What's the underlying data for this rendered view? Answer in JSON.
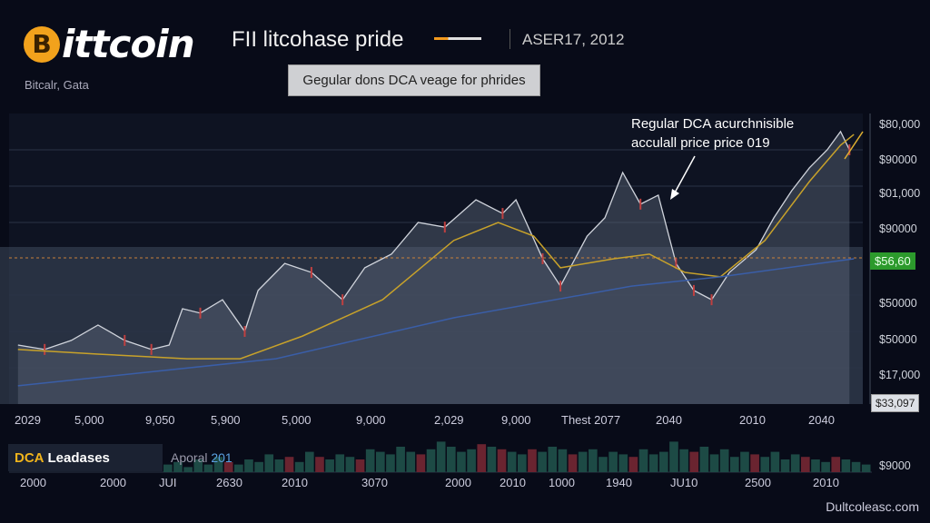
{
  "header": {
    "logo_symbol": "B",
    "logo_text": "ittcoin",
    "title": "FII litcohase pride",
    "date": "ASER17, 2012",
    "subtitle": "Bitcalr, Gata",
    "button_label": "Gegular dons DCA veage for phrides"
  },
  "annotation": {
    "line1": "Regular DCA acurchnisible",
    "line2": "acculall price price 019"
  },
  "y_axis_labels": [
    "$80,000",
    "$90000",
    "$01,000",
    "$90000",
    "$50000",
    "$50000",
    "$17,000"
  ],
  "current_price_badge": "$56,60",
  "price_badge": "$33,097",
  "volume_axis_label": "$9000",
  "x_axis_labels": [
    "2029",
    "5,000",
    "9,050",
    "5,900",
    "5,000",
    "9,000",
    "2,029",
    "9,000",
    "Thest 2077",
    "2040",
    "2010",
    "2040"
  ],
  "volume_x_labels": [
    "2000",
    "2000",
    "JUI",
    "2630",
    "2010",
    "3070",
    "2000",
    "2010",
    "1000",
    "1940",
    "JU10",
    "2500",
    "2010"
  ],
  "volume_panel": {
    "label_a": "DCA",
    "label_b": "Leadases",
    "aporal": "Aporal",
    "aporal_value": "201"
  },
  "watermark": "Dultcoleasc.com",
  "colors": {
    "price": "#d0d4dc",
    "ma": "#c8a22a",
    "trend": "#3a5ea8",
    "badge": "#2c9a2c",
    "accent": "#f2a21c"
  },
  "chart_data": {
    "type": "line",
    "title": "FII litcohase pride",
    "ylim": [
      0,
      100
    ],
    "xlim": [
      0,
      96
    ],
    "series": [
      {
        "name": "price",
        "x": [
          1,
          4,
          7,
          10,
          13,
          16,
          18,
          19.5,
          21.5,
          24,
          26.5,
          28,
          31,
          34,
          37.5,
          40,
          43,
          46,
          49,
          52.5,
          55.5,
          57,
          60,
          62,
          65,
          67,
          69,
          71,
          73,
          75,
          77,
          79,
          81,
          84,
          86,
          88,
          90,
          92,
          93.5,
          94.5
        ],
        "values": [
          20.3,
          18.8,
          21.9,
          27.2,
          21.9,
          18.8,
          20.3,
          32.8,
          31.3,
          35.9,
          25,
          39.1,
          48.4,
          45.3,
          35.9,
          46.9,
          51.6,
          62.5,
          60.9,
          70.3,
          65.6,
          70.3,
          50,
          40.6,
          57.8,
          64.1,
          79.7,
          68.8,
          71.9,
          48.4,
          39.1,
          35.9,
          45.3,
          53.1,
          64.1,
          73.4,
          81.3,
          87.5,
          93.8,
          87.5
        ]
      },
      {
        "name": "moving-average",
        "x": [
          1,
          10,
          20,
          26,
          33,
          42,
          50,
          55,
          59,
          62,
          68,
          72,
          76,
          80,
          85,
          90,
          93.5,
          95
        ],
        "values": [
          18.8,
          17.2,
          15.6,
          15.6,
          23.4,
          35.9,
          56.3,
          62.5,
          57.8,
          46.9,
          50,
          51.6,
          45.3,
          43.8,
          56.3,
          76.6,
          89.1,
          92.8
        ]
      },
      {
        "name": "trend",
        "x": [
          1,
          30,
          50,
          70,
          80,
          95
        ],
        "values": [
          6.3,
          15.6,
          29.7,
          40.6,
          43.8,
          50
        ]
      }
    ],
    "volume": [
      3,
      4,
      2,
      5,
      3,
      6,
      4,
      3,
      5,
      4,
      7,
      5,
      6,
      4,
      8,
      6,
      5,
      7,
      6,
      5,
      9,
      8,
      7,
      10,
      8,
      7,
      9,
      12,
      10,
      8,
      9,
      11,
      10,
      9,
      8,
      7,
      9,
      8,
      10,
      9,
      7,
      8,
      9,
      6,
      8,
      7,
      6,
      9,
      7,
      8,
      12,
      9,
      8,
      10,
      7,
      9,
      6,
      8,
      7,
      6,
      8,
      5,
      7,
      6,
      5,
      4,
      6,
      5,
      4,
      3
    ],
    "volume_down": [
      6,
      12,
      15,
      19,
      25,
      31,
      33,
      36,
      40,
      46,
      52,
      58,
      63,
      66
    ]
  }
}
